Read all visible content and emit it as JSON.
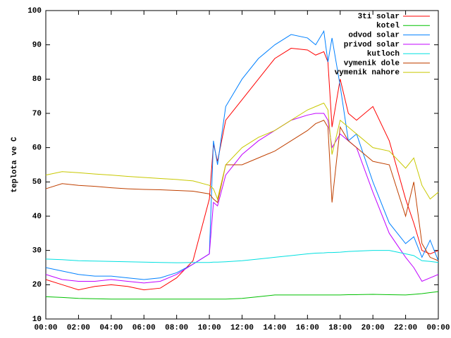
{
  "chart_data": {
    "type": "line",
    "y_label": "teplota ve C",
    "x": [
      0,
      1,
      2,
      3,
      4,
      5,
      6,
      7,
      8,
      9,
      10,
      10.25,
      10.5,
      11,
      12,
      13,
      14,
      15,
      16,
      16.5,
      17,
      17.25,
      17.5,
      18,
      18.5,
      19,
      20,
      21,
      22,
      22.5,
      23,
      23.5,
      24
    ],
    "xlim": [
      0,
      24
    ],
    "xticks": [
      {
        "value": 0,
        "label": "00:00"
      },
      {
        "value": 2,
        "label": "02:00"
      },
      {
        "value": 4,
        "label": "04:00"
      },
      {
        "value": 6,
        "label": "06:00"
      },
      {
        "value": 8,
        "label": "08:00"
      },
      {
        "value": 10,
        "label": "10:00"
      },
      {
        "value": 12,
        "label": "12:00"
      },
      {
        "value": 14,
        "label": "14:00"
      },
      {
        "value": 16,
        "label": "16:00"
      },
      {
        "value": 18,
        "label": "18:00"
      },
      {
        "value": 20,
        "label": "20:00"
      },
      {
        "value": 22,
        "label": "22:00"
      },
      {
        "value": 24,
        "label": "00:00"
      }
    ],
    "ylim": [
      10,
      100
    ],
    "yticks": [
      10,
      20,
      30,
      40,
      50,
      60,
      70,
      80,
      90,
      100
    ],
    "grid": false,
    "legend": "top-right",
    "series": [
      {
        "name": "3ti solar",
        "color": "#ff0000",
        "values": [
          21.5,
          20,
          18.5,
          19.5,
          20,
          19.5,
          18.5,
          19,
          22,
          27,
          45,
          61,
          56,
          68,
          74,
          80,
          86,
          89,
          88.5,
          87,
          88,
          85,
          66,
          80,
          70,
          68,
          72,
          62,
          45,
          38,
          30,
          29,
          30
        ]
      },
      {
        "name": "kotel",
        "color": "#00c000",
        "values": [
          16.5,
          16.3,
          16,
          15.9,
          15.8,
          15.8,
          15.8,
          15.8,
          15.8,
          15.8,
          15.8,
          15.8,
          15.8,
          15.8,
          16,
          16.5,
          17,
          17,
          17,
          17,
          17,
          17,
          17,
          17,
          17.1,
          17.1,
          17.2,
          17.1,
          17,
          17.2,
          17.4,
          17.7,
          18
        ]
      },
      {
        "name": "odvod solar",
        "color": "#0080ff",
        "values": [
          25,
          24,
          23,
          22.5,
          22.5,
          22,
          21.5,
          22,
          23.5,
          26,
          29,
          62,
          55,
          72,
          80,
          86,
          90,
          93,
          92,
          90,
          94,
          85,
          92,
          78,
          62,
          64,
          50,
          38,
          32,
          34,
          28,
          33,
          27
        ]
      },
      {
        "name": "privod solar",
        "color": "#c000ff",
        "values": [
          23,
          21.5,
          21,
          21,
          21.5,
          21,
          20.5,
          21,
          23,
          26,
          29,
          44,
          43,
          52,
          58,
          62,
          65,
          68,
          69.5,
          70,
          70,
          68,
          60,
          64,
          62,
          60,
          47,
          35,
          28,
          25,
          21,
          22,
          23
        ]
      },
      {
        "name": "kutloch",
        "color": "#00e0e0",
        "values": [
          27.5,
          27.3,
          27,
          26.9,
          26.8,
          26.7,
          26.6,
          26.5,
          26.4,
          26.5,
          26.5,
          26.6,
          26.6,
          26.7,
          27,
          27.5,
          28,
          28.5,
          29,
          29.2,
          29.3,
          29.4,
          29.4,
          29.5,
          29.7,
          29.8,
          30,
          30,
          29,
          28.5,
          27,
          26.8,
          26.5
        ]
      },
      {
        "name": "vymenik dole",
        "color": "#c04000",
        "values": [
          48,
          49.5,
          49,
          48.7,
          48.3,
          48,
          47.8,
          47.7,
          47.5,
          47.3,
          46.5,
          45,
          44,
          55,
          55,
          57,
          59,
          62,
          65,
          67,
          68,
          66,
          44,
          66,
          62,
          60,
          56,
          55,
          40,
          50,
          32,
          28,
          27
        ]
      },
      {
        "name": "vymenik nahore",
        "color": "#c8c800",
        "values": [
          52,
          53,
          52.7,
          52.3,
          52,
          51.6,
          51.3,
          51,
          50.7,
          50.3,
          49,
          48,
          45,
          55,
          60,
          63,
          65,
          68,
          71,
          72,
          73,
          71,
          58,
          68,
          66,
          64,
          60,
          59,
          54,
          57,
          49,
          45,
          47
        ]
      }
    ]
  }
}
